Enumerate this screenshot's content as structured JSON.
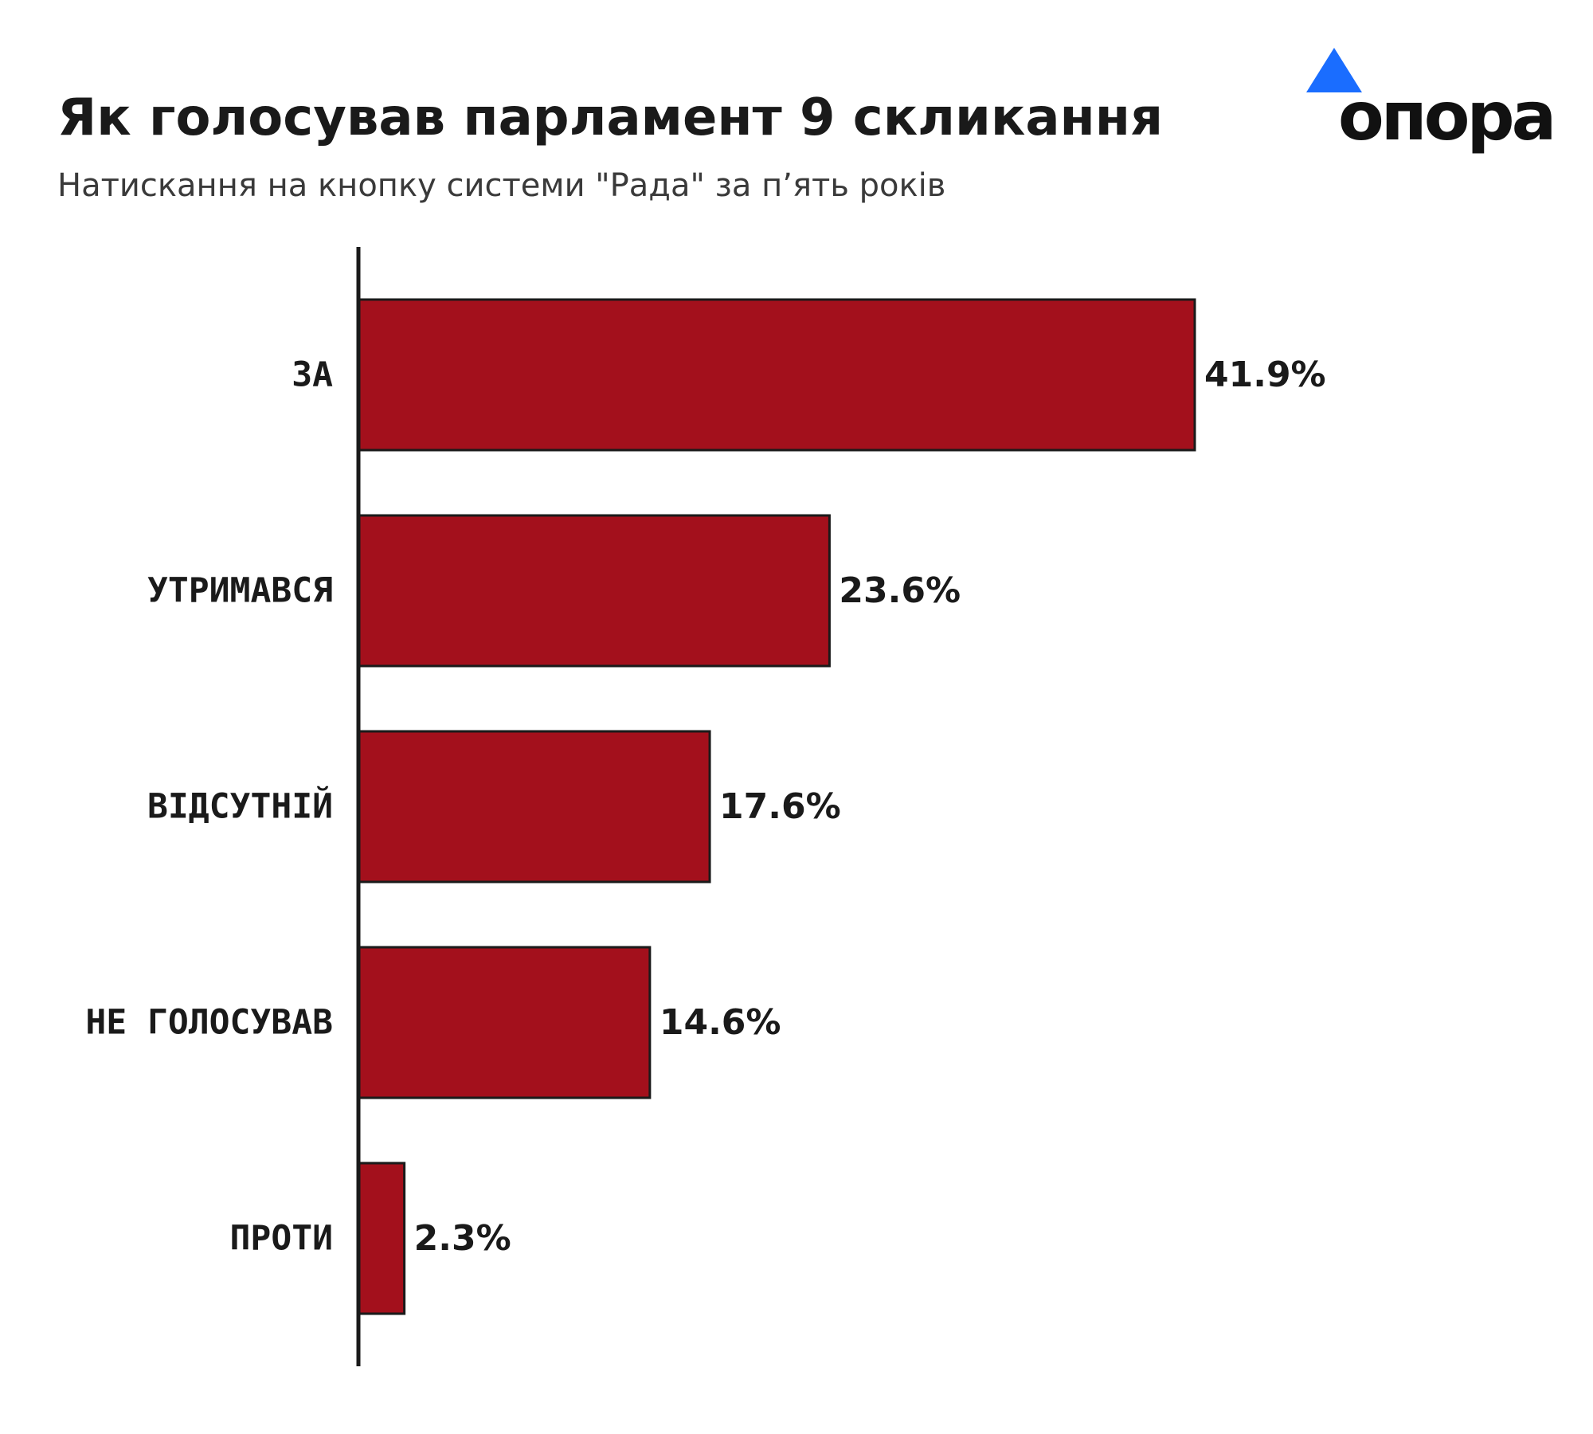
{
  "title": "Як голосував парламент 9 скликання",
  "subtitle": "Натискання на кнопку системи \"Рада\" за п’ять років",
  "logo": {
    "text": "опора",
    "triangle_color": "#1a6dff"
  },
  "colors": {
    "bar": "#a3101c",
    "bar_stroke": "#1a1a1a",
    "axis": "#1a1a1a",
    "text": "#1a1a1a"
  },
  "chart_data": {
    "type": "bar",
    "orientation": "horizontal",
    "title": "Як голосував парламент 9 скликання",
    "subtitle": "Натискання на кнопку системи \"Рада\" за п’ять років",
    "categories": [
      "ЗА",
      "УТРИМАВСЯ",
      "ВІДСУТНІЙ",
      "НЕ ГОЛОСУВАВ",
      "ПРОТИ"
    ],
    "values": [
      41.9,
      23.6,
      17.6,
      14.6,
      2.3
    ],
    "value_labels": [
      "41.9%",
      "23.6%",
      "17.6%",
      "14.6%",
      "2.3%"
    ],
    "unit": "%",
    "xlim": [
      0,
      41.9
    ],
    "xlabel": "",
    "ylabel": "",
    "grid": false,
    "legend": "none"
  }
}
